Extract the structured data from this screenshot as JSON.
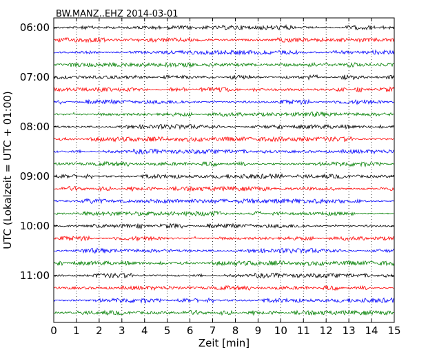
{
  "chart_data": {
    "type": "line",
    "title": "BW.MANZ..EHZ 2014-03-01",
    "xlabel": "Zeit  [min]",
    "ylabel": "UTC (Lokalzeit = UTC + 01:00)",
    "xlim": [
      0,
      15
    ],
    "x_ticks": [
      "0",
      "1",
      "2",
      "3",
      "4",
      "5",
      "6",
      "7",
      "8",
      "9",
      "10",
      "11",
      "12",
      "13",
      "14",
      "15"
    ],
    "y_ticks": [
      "06:00",
      "07:00",
      "08:00",
      "09:00",
      "10:00",
      "11:00"
    ],
    "grid": "vertical dotted",
    "trace_colors": [
      "#000000",
      "#ff0000",
      "#0000ff",
      "#007f00"
    ],
    "num_traces": 24
  }
}
